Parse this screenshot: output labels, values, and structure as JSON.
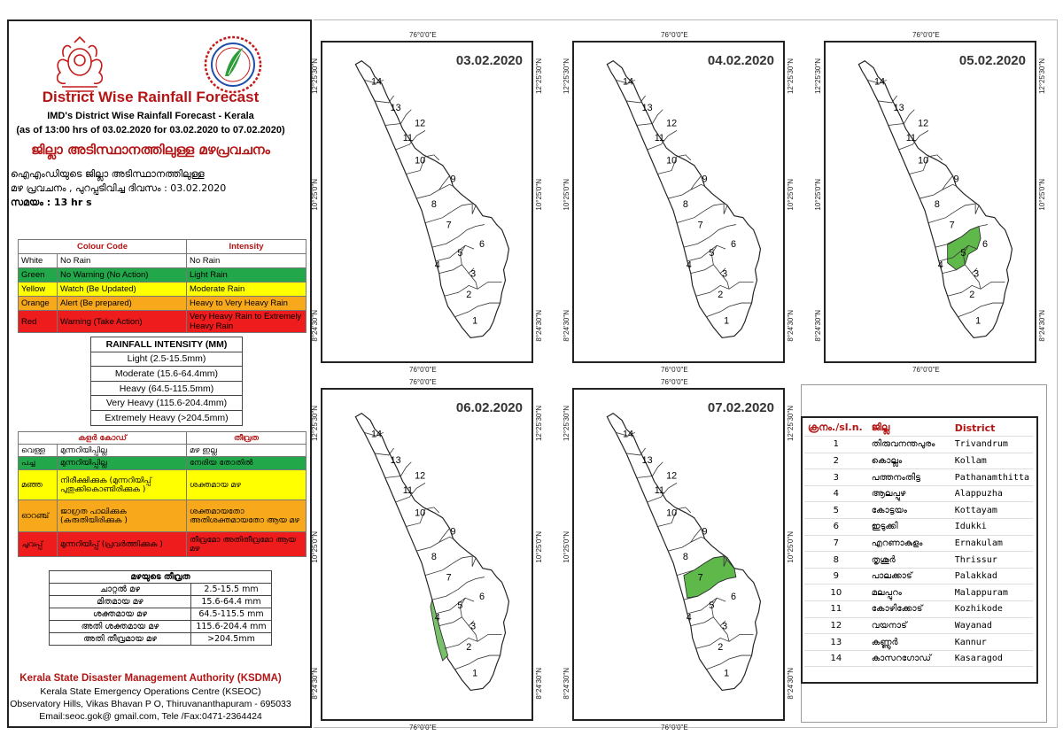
{
  "header": {
    "title": "District Wise Rainfall Forecast",
    "subtitle": "IMD's District Wise Rainfall Forecast - Kerala",
    "period": "(as of 13:00 hrs of 03.02.2020  for 03.02.2020  to 07.02.2020)",
    "title_ml": "ജില്ലാ അടിസ്ഥാനത്തിലുള്ള മഴപ്രവചനം",
    "desc_ml_1": "ഐഎംഡിയുടെ ജില്ലാ      അടിസ്ഥാനത്തിലുള്ള",
    "desc_ml_2": "മഴ പ്രവചനം  , പുറപ്പടിവിച്ച      ദിവസം : 03.02.2020",
    "desc_ml_3": "സമയം : 13  hr s"
  },
  "colour_code": {
    "headers": [
      "Colour Code",
      "Intensity"
    ],
    "rows": [
      {
        "colour": "White",
        "code": "No Rain",
        "intensity": "No Rain",
        "bg": "#ffffff"
      },
      {
        "colour": "Green",
        "code": "No Warning (No Action)",
        "intensity": "Light Rain",
        "bg": "#22a84a"
      },
      {
        "colour": "Yellow",
        "code": "Watch (Be Updated)",
        "intensity": "Moderate Rain",
        "bg": "#ffff00"
      },
      {
        "colour": "Orange",
        "code": "Alert (Be prepared)",
        "intensity": "Heavy to Very Heavy Rain",
        "bg": "#f7a81b"
      },
      {
        "colour": "Red",
        "code": "Warning (Take Action)",
        "intensity": "Very Heavy Rain to Extremely Heavy Rain",
        "bg": "#ee1c1c"
      }
    ]
  },
  "rainfall_intensity": {
    "header": "RAINFALL INTENSITY (MM)",
    "rows": [
      "Light (2.5-15.5mm)",
      "Moderate (15.6-64.4mm)",
      "Heavy (64.5-115.5mm)",
      "Very Heavy (115.6-204.4mm)",
      "Extremely Heavy (>204.5mm)"
    ]
  },
  "colour_code_ml": {
    "headers": [
      "കളർ കോഡ്",
      "തീവ്രത"
    ],
    "rows": [
      {
        "colour": "വെള്ള",
        "code": "മുന്നറിയിപ്പില്ല",
        "intensity": "മഴ ഇല്ല"
      },
      {
        "colour": "പച്ച",
        "code": "മുന്നറിയിപ്പില്ല",
        "intensity": "നേരിയ തോതിൽ"
      },
      {
        "colour": "മഞ്ഞ",
        "code": "നിരീക്ഷിക്കുക (മുന്നറിയിപ്പ് പുതുക്കികൊണ്ടിരിക്കുക )",
        "intensity": "ശക്തമായ മഴ"
      },
      {
        "colour": "ഓറഞ്ച്",
        "code": "ജാഗ്രത പാലിക്കുക (കരുതിയിരിക്കുക )",
        "intensity": "ശക്തമായതോ അതിശക്തമായതോ ആയ മഴ"
      },
      {
        "colour": "ചുവപ്പ്",
        "code": "മുന്നറിയിപ്പ് (പ്രവർത്തിക്കുക )",
        "intensity": "തീവ്രമോ അതിതീവ്രമോ ആയ മഴ"
      }
    ]
  },
  "intensity_ml": {
    "header": "മഴയുടെ തീവ്രത",
    "rows": [
      {
        "label": "ചാറ്റൽ മഴ",
        "range": "2.5-15.5 mm"
      },
      {
        "label": "മിതമായ മഴ",
        "range": "15.6-64.4 mm"
      },
      {
        "label": "ശക്തമായ മഴ",
        "range": "64.5-115.5 mm"
      },
      {
        "label": "അതി ശക്തമായ മഴ",
        "range": "115.6-204.4 mm"
      },
      {
        "label": "അതി തീവ്രമായ മഴ",
        "range": ">204.5mm"
      }
    ]
  },
  "footer": {
    "org": "Kerala State Disaster Management Authority (KSDMA)",
    "centre": "Kerala State Emergency Operations Centre (KSEOC)",
    "address": "Observatory Hills, Vikas Bhavan P O, Thiruvananthapuram - 695033",
    "contact": "Email:seoc.gok@ gmail.com, Tele /Fax:0471-2364424"
  },
  "coords": {
    "lon": "76°0'0\"E",
    "lat_top": "12°25'30\"N",
    "lat_mid": "10°25'0\"N",
    "lat_bot": "8°24'30\"N"
  },
  "maps": [
    {
      "date": "03.02.2020",
      "highlight": []
    },
    {
      "date": "04.02.2020",
      "highlight": []
    },
    {
      "date": "05.02.2020",
      "highlight": [
        5
      ]
    },
    {
      "date": "06.02.2020",
      "highlight": [
        4
      ]
    },
    {
      "date": "07.02.2020",
      "highlight": [
        7
      ]
    }
  ],
  "map_colors": {
    "green": "#5fb84a",
    "light_green": "#79c06a"
  },
  "district_labels": [
    "1",
    "2",
    "3",
    "4",
    "5",
    "6",
    "7",
    "8",
    "9",
    "10",
    "11",
    "12",
    "13",
    "14"
  ],
  "district_table": {
    "headers": [
      "ക്രനം./sl.n.",
      "ജില്ല",
      "District"
    ],
    "rows": [
      {
        "n": "1",
        "ml": "തിരുവനന്തപുരം",
        "en": "Trivandrum"
      },
      {
        "n": "2",
        "ml": "കൊല്ലം",
        "en": "Kollam"
      },
      {
        "n": "3",
        "ml": "പത്തനംതിട്ട",
        "en": "Pathanamthitta"
      },
      {
        "n": "4",
        "ml": "ആലപ്പുഴ",
        "en": "Alappuzha"
      },
      {
        "n": "5",
        "ml": "കോട്ടയം",
        "en": "Kottayam"
      },
      {
        "n": "6",
        "ml": "ഇടുക്കി",
        "en": "Idukki"
      },
      {
        "n": "7",
        "ml": "എറണാകുളം",
        "en": "Ernakulam"
      },
      {
        "n": "8",
        "ml": "തൃശൂർ",
        "en": "Thrissur"
      },
      {
        "n": "9",
        "ml": "പാലക്കാട്",
        "en": "Palakkad"
      },
      {
        "n": "10",
        "ml": "മലപ്പുറം",
        "en": "Malappuram"
      },
      {
        "n": "11",
        "ml": "കോഴിക്കോട്",
        "en": "Kozhikode"
      },
      {
        "n": "12",
        "ml": "വയനാട്",
        "en": "Wayanad"
      },
      {
        "n": "13",
        "ml": "കണ്ണൂർ",
        "en": "Kannur"
      },
      {
        "n": "14",
        "ml": "കാസറഗോഡ്",
        "en": "Kasaragod"
      }
    ]
  }
}
